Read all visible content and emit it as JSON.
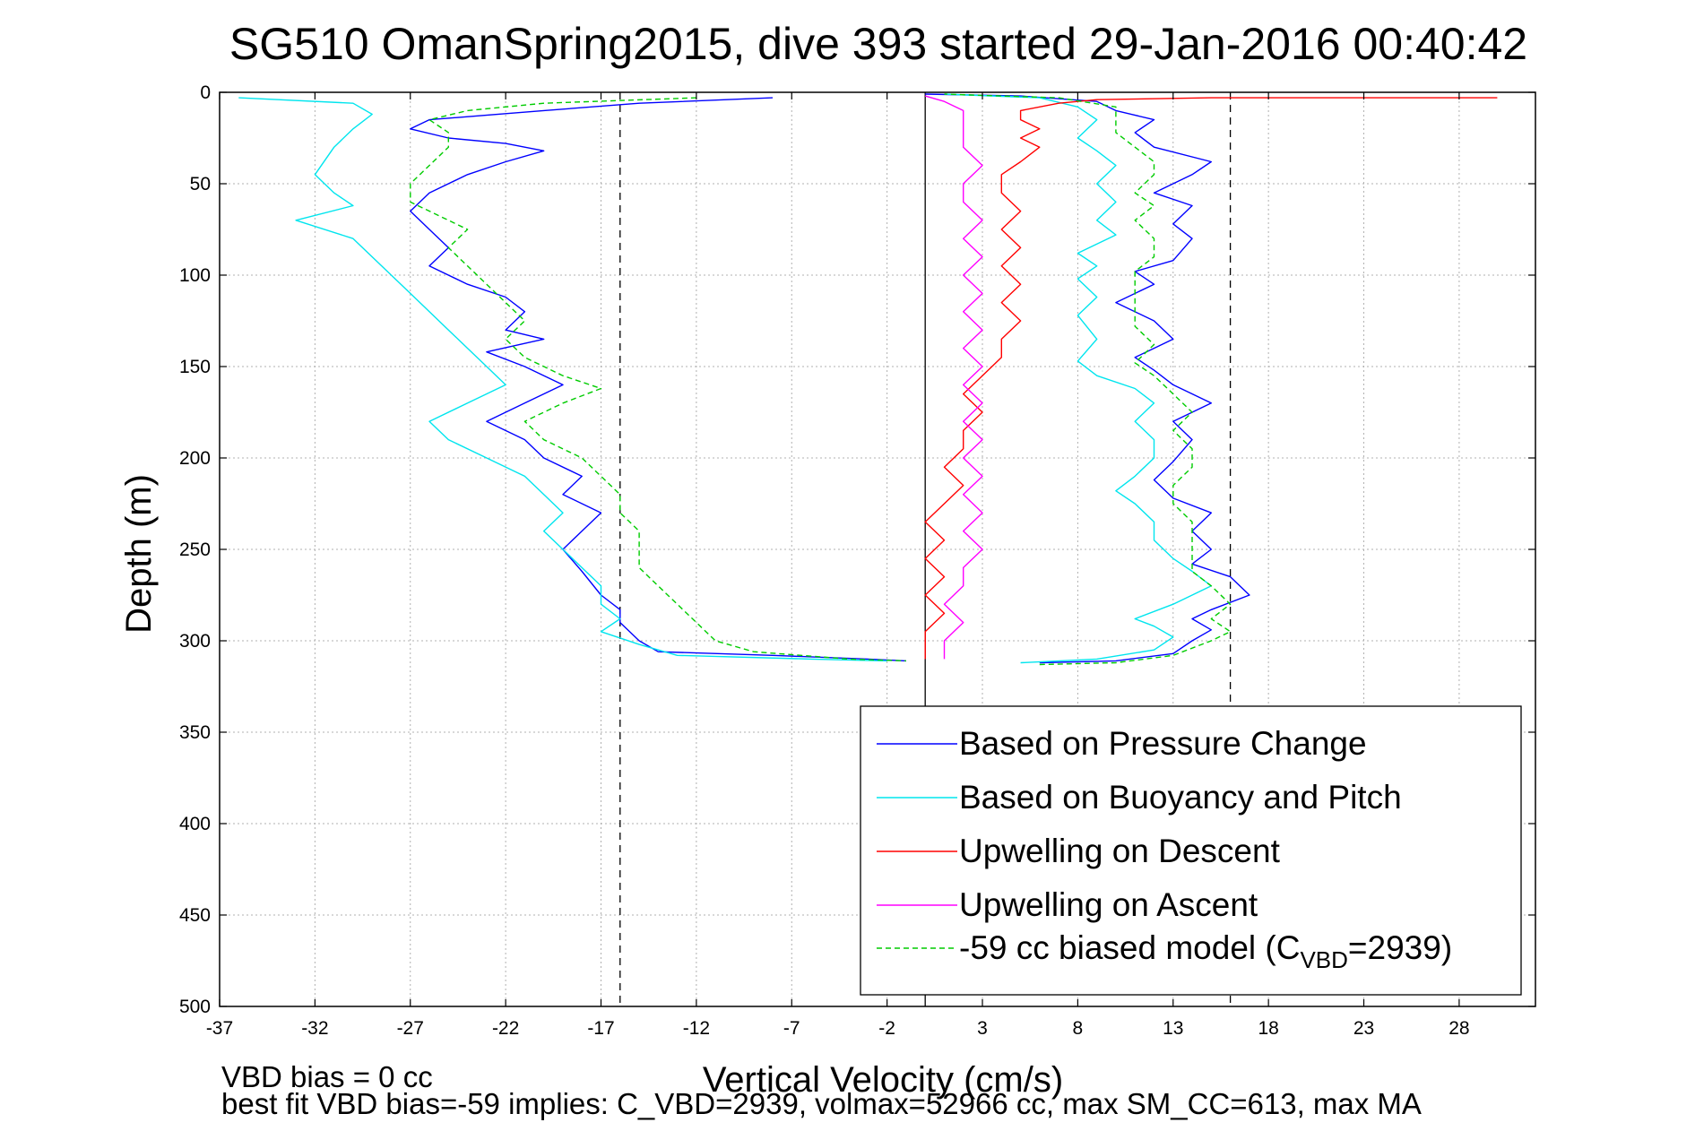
{
  "chart_data": {
    "type": "line",
    "title": "SG510 OmanSpring2015, dive 393 started 29-Jan-2016 00:40:42",
    "xlabel": "Vertical Velocity (cm/s)",
    "ylabel": "Depth (m)",
    "xlim": [
      -37,
      32
    ],
    "ylim": [
      500,
      0
    ],
    "y_reversed": true,
    "grid": true,
    "x_ticks": [
      -37,
      -32,
      -27,
      -22,
      -17,
      -12,
      -7,
      -2,
      3,
      8,
      13,
      18,
      23,
      28
    ],
    "y_ticks": [
      0,
      50,
      100,
      150,
      200,
      250,
      300,
      350,
      400,
      450,
      500
    ],
    "x_tick_labels": [
      "-37",
      "-32",
      "-27",
      "-22",
      "-17",
      "-12",
      "-7",
      "-2",
      "3",
      "8",
      "13",
      "18",
      "23",
      "28"
    ],
    "y_tick_labels": [
      "0",
      "50",
      "100",
      "150",
      "200",
      "250",
      "300",
      "350",
      "400",
      "450",
      "500"
    ],
    "reference_lines": {
      "zero_solid_x": 0,
      "dashed_x": [
        -16,
        16
      ]
    },
    "legend_position": "lower-right",
    "series": [
      {
        "name": "Based on Pressure Change",
        "color": "#0000ff",
        "style": "solid",
        "descent": [
          [
            -8,
            3
          ],
          [
            -15,
            6
          ],
          [
            -20,
            10
          ],
          [
            -26,
            15
          ],
          [
            -27,
            20
          ],
          [
            -25,
            25
          ],
          [
            -22,
            28
          ],
          [
            -20,
            32
          ],
          [
            -22,
            38
          ],
          [
            -24,
            45
          ],
          [
            -26,
            55
          ],
          [
            -27,
            65
          ],
          [
            -26,
            75
          ],
          [
            -25,
            85
          ],
          [
            -26,
            95
          ],
          [
            -24,
            105
          ],
          [
            -22,
            112
          ],
          [
            -21,
            120
          ],
          [
            -22,
            130
          ],
          [
            -20,
            135
          ],
          [
            -23,
            142
          ],
          [
            -21,
            150
          ],
          [
            -19,
            160
          ],
          [
            -21,
            170
          ],
          [
            -23,
            180
          ],
          [
            -21,
            190
          ],
          [
            -20,
            200
          ],
          [
            -18,
            210
          ],
          [
            -19,
            220
          ],
          [
            -17,
            230
          ],
          [
            -18,
            240
          ],
          [
            -19,
            250
          ],
          [
            -18,
            262
          ],
          [
            -17,
            275
          ],
          [
            -16,
            283
          ],
          [
            -16,
            290
          ],
          [
            -15,
            300
          ],
          [
            -14,
            306
          ],
          [
            -8,
            308
          ],
          [
            -3,
            310
          ],
          [
            -1,
            311
          ]
        ],
        "ascent": [
          [
            6,
            312
          ],
          [
            10,
            311
          ],
          [
            13,
            307
          ],
          [
            14,
            300
          ],
          [
            15,
            294
          ],
          [
            14,
            288
          ],
          [
            15,
            283
          ],
          [
            17,
            275
          ],
          [
            16,
            265
          ],
          [
            14,
            258
          ],
          [
            15,
            250
          ],
          [
            14,
            240
          ],
          [
            15,
            230
          ],
          [
            13,
            222
          ],
          [
            12,
            212
          ],
          [
            13,
            202
          ],
          [
            14,
            190
          ],
          [
            13,
            180
          ],
          [
            15,
            170
          ],
          [
            13,
            160
          ],
          [
            12,
            152
          ],
          [
            11,
            145
          ],
          [
            13,
            135
          ],
          [
            12,
            125
          ],
          [
            10,
            115
          ],
          [
            12,
            105
          ],
          [
            11,
            98
          ],
          [
            13,
            92
          ],
          [
            14,
            80
          ],
          [
            13,
            72
          ],
          [
            14,
            62
          ],
          [
            12,
            55
          ],
          [
            14,
            45
          ],
          [
            15,
            38
          ],
          [
            12,
            30
          ],
          [
            11,
            22
          ],
          [
            12,
            15
          ],
          [
            10,
            10
          ],
          [
            9,
            5
          ],
          [
            5,
            2
          ],
          [
            0,
            1
          ]
        ]
      },
      {
        "name": "Based on Buoyancy and Pitch",
        "color": "#00e5ee",
        "style": "solid",
        "descent": [
          [
            -36,
            3
          ],
          [
            -30,
            6
          ],
          [
            -29,
            12
          ],
          [
            -30,
            20
          ],
          [
            -31,
            30
          ],
          [
            -32,
            45
          ],
          [
            -31,
            55
          ],
          [
            -30,
            62
          ],
          [
            -33,
            70
          ],
          [
            -30,
            80
          ],
          [
            -29,
            90
          ],
          [
            -28,
            100
          ],
          [
            -27,
            110
          ],
          [
            -26,
            120
          ],
          [
            -25,
            130
          ],
          [
            -24,
            140
          ],
          [
            -23,
            150
          ],
          [
            -22,
            160
          ],
          [
            -24,
            170
          ],
          [
            -26,
            180
          ],
          [
            -25,
            190
          ],
          [
            -23,
            200
          ],
          [
            -21,
            210
          ],
          [
            -20,
            220
          ],
          [
            -19,
            230
          ],
          [
            -20,
            240
          ],
          [
            -19,
            250
          ],
          [
            -18,
            260
          ],
          [
            -17,
            270
          ],
          [
            -17,
            280
          ],
          [
            -16,
            288
          ],
          [
            -17,
            295
          ],
          [
            -15,
            302
          ],
          [
            -13,
            308
          ],
          [
            -6,
            310
          ],
          [
            -2,
            311
          ]
        ],
        "ascent": [
          [
            5,
            312
          ],
          [
            9,
            310
          ],
          [
            12,
            305
          ],
          [
            13,
            298
          ],
          [
            12,
            292
          ],
          [
            11,
            288
          ],
          [
            13,
            280
          ],
          [
            15,
            270
          ],
          [
            14,
            262
          ],
          [
            13,
            255
          ],
          [
            12,
            245
          ],
          [
            12,
            235
          ],
          [
            11,
            225
          ],
          [
            10,
            218
          ],
          [
            11,
            210
          ],
          [
            12,
            200
          ],
          [
            12,
            190
          ],
          [
            11,
            180
          ],
          [
            12,
            170
          ],
          [
            11,
            162
          ],
          [
            9,
            155
          ],
          [
            8,
            147
          ],
          [
            9,
            135
          ],
          [
            8,
            122
          ],
          [
            9,
            112
          ],
          [
            8,
            102
          ],
          [
            9,
            95
          ],
          [
            8,
            88
          ],
          [
            10,
            78
          ],
          [
            9,
            70
          ],
          [
            10,
            60
          ],
          [
            9,
            50
          ],
          [
            10,
            40
          ],
          [
            9,
            32
          ],
          [
            8,
            25
          ],
          [
            9,
            15
          ],
          [
            8,
            8
          ],
          [
            6,
            3
          ],
          [
            1,
            1
          ]
        ]
      },
      {
        "name": "Upwelling on Descent",
        "color": "#ff0000",
        "style": "solid",
        "descent": [
          [
            30,
            3
          ],
          [
            15,
            3
          ],
          [
            9,
            4
          ],
          [
            7,
            6
          ],
          [
            5,
            10
          ],
          [
            5,
            15
          ],
          [
            6,
            20
          ],
          [
            5,
            25
          ],
          [
            6,
            30
          ],
          [
            5,
            38
          ],
          [
            4,
            45
          ],
          [
            4,
            55
          ],
          [
            5,
            65
          ],
          [
            4,
            75
          ],
          [
            5,
            85
          ],
          [
            4,
            95
          ],
          [
            5,
            105
          ],
          [
            4,
            115
          ],
          [
            5,
            125
          ],
          [
            4,
            135
          ],
          [
            4,
            145
          ],
          [
            3,
            155
          ],
          [
            2,
            165
          ],
          [
            3,
            175
          ],
          [
            2,
            185
          ],
          [
            2,
            195
          ],
          [
            1,
            205
          ],
          [
            2,
            215
          ],
          [
            1,
            225
          ],
          [
            0,
            235
          ],
          [
            1,
            245
          ],
          [
            0,
            255
          ],
          [
            1,
            265
          ],
          [
            0,
            275
          ],
          [
            1,
            285
          ],
          [
            0,
            295
          ],
          [
            0,
            305
          ],
          [
            0,
            310
          ]
        ]
      },
      {
        "name": "Upwelling on Ascent",
        "color": "#ff00ff",
        "style": "solid",
        "ascent": [
          [
            1,
            310
          ],
          [
            1,
            300
          ],
          [
            2,
            290
          ],
          [
            1,
            280
          ],
          [
            2,
            270
          ],
          [
            2,
            260
          ],
          [
            3,
            250
          ],
          [
            2,
            240
          ],
          [
            3,
            230
          ],
          [
            2,
            220
          ],
          [
            3,
            210
          ],
          [
            2,
            200
          ],
          [
            3,
            190
          ],
          [
            2,
            180
          ],
          [
            3,
            170
          ],
          [
            2,
            160
          ],
          [
            3,
            150
          ],
          [
            2,
            140
          ],
          [
            3,
            130
          ],
          [
            2,
            120
          ],
          [
            3,
            110
          ],
          [
            2,
            100
          ],
          [
            3,
            90
          ],
          [
            2,
            80
          ],
          [
            3,
            70
          ],
          [
            2,
            60
          ],
          [
            2,
            50
          ],
          [
            3,
            40
          ],
          [
            2,
            30
          ],
          [
            2,
            20
          ],
          [
            2,
            10
          ],
          [
            1,
            5
          ],
          [
            0,
            2
          ]
        ]
      },
      {
        "name": "-59 cc biased model (C_VBD=2939)",
        "color": "#00cc00",
        "style": "dashed",
        "descent": [
          [
            -12,
            3
          ],
          [
            -20,
            6
          ],
          [
            -24,
            10
          ],
          [
            -26,
            15
          ],
          [
            -25,
            22
          ],
          [
            -25,
            30
          ],
          [
            -26,
            40
          ],
          [
            -27,
            50
          ],
          [
            -27,
            60
          ],
          [
            -25,
            70
          ],
          [
            -24,
            75
          ],
          [
            -25,
            85
          ],
          [
            -24,
            95
          ],
          [
            -23,
            105
          ],
          [
            -22,
            115
          ],
          [
            -21,
            125
          ],
          [
            -22,
            135
          ],
          [
            -21,
            145
          ],
          [
            -19,
            155
          ],
          [
            -17,
            162
          ],
          [
            -19,
            170
          ],
          [
            -21,
            180
          ],
          [
            -20,
            190
          ],
          [
            -18,
            200
          ],
          [
            -17,
            210
          ],
          [
            -16,
            220
          ],
          [
            -16,
            230
          ],
          [
            -15,
            240
          ],
          [
            -15,
            250
          ],
          [
            -15,
            260
          ],
          [
            -14,
            270
          ],
          [
            -13,
            280
          ],
          [
            -12,
            290
          ],
          [
            -11,
            300
          ],
          [
            -9,
            306
          ],
          [
            -4,
            310
          ],
          [
            -1,
            311
          ]
        ],
        "ascent": [
          [
            6,
            313
          ],
          [
            10,
            312
          ],
          [
            13,
            308
          ],
          [
            15,
            300
          ],
          [
            16,
            295
          ],
          [
            15,
            288
          ],
          [
            16,
            280
          ],
          [
            15,
            270
          ],
          [
            14,
            262
          ],
          [
            14,
            255
          ],
          [
            14,
            245
          ],
          [
            14,
            235
          ],
          [
            13,
            225
          ],
          [
            13,
            215
          ],
          [
            14,
            205
          ],
          [
            14,
            195
          ],
          [
            13,
            185
          ],
          [
            14,
            175
          ],
          [
            13,
            165
          ],
          [
            12,
            155
          ],
          [
            11,
            148
          ],
          [
            12,
            138
          ],
          [
            11,
            128
          ],
          [
            11,
            118
          ],
          [
            11,
            108
          ],
          [
            11,
            98
          ],
          [
            12,
            90
          ],
          [
            12,
            80
          ],
          [
            11,
            70
          ],
          [
            12,
            62
          ],
          [
            11,
            55
          ],
          [
            12,
            45
          ],
          [
            12,
            38
          ],
          [
            11,
            30
          ],
          [
            10,
            22
          ],
          [
            10,
            15
          ],
          [
            10,
            8
          ],
          [
            7,
            3
          ],
          [
            1,
            1
          ]
        ]
      }
    ],
    "legend": [
      {
        "label": "Based on Pressure Change",
        "color": "#0000ff",
        "dash": false
      },
      {
        "label": "Based on Buoyancy and Pitch",
        "color": "#00e5ee",
        "dash": false
      },
      {
        "label": "Upwelling on Descent",
        "color": "#ff0000",
        "dash": false
      },
      {
        "label": "Upwelling on Ascent",
        "color": "#ff00ff",
        "dash": false
      },
      {
        "label": "-59 cc biased model (C",
        "sub": "VBD",
        "suffix": "=2939)",
        "color": "#00cc00",
        "dash": true
      }
    ],
    "annotations": {
      "line1": "VBD bias = 0 cc",
      "line2": "best fit VBD bias=-59 implies: C_VBD=2939, volmax=52966 cc, max SM_CC=613, max MA"
    }
  }
}
